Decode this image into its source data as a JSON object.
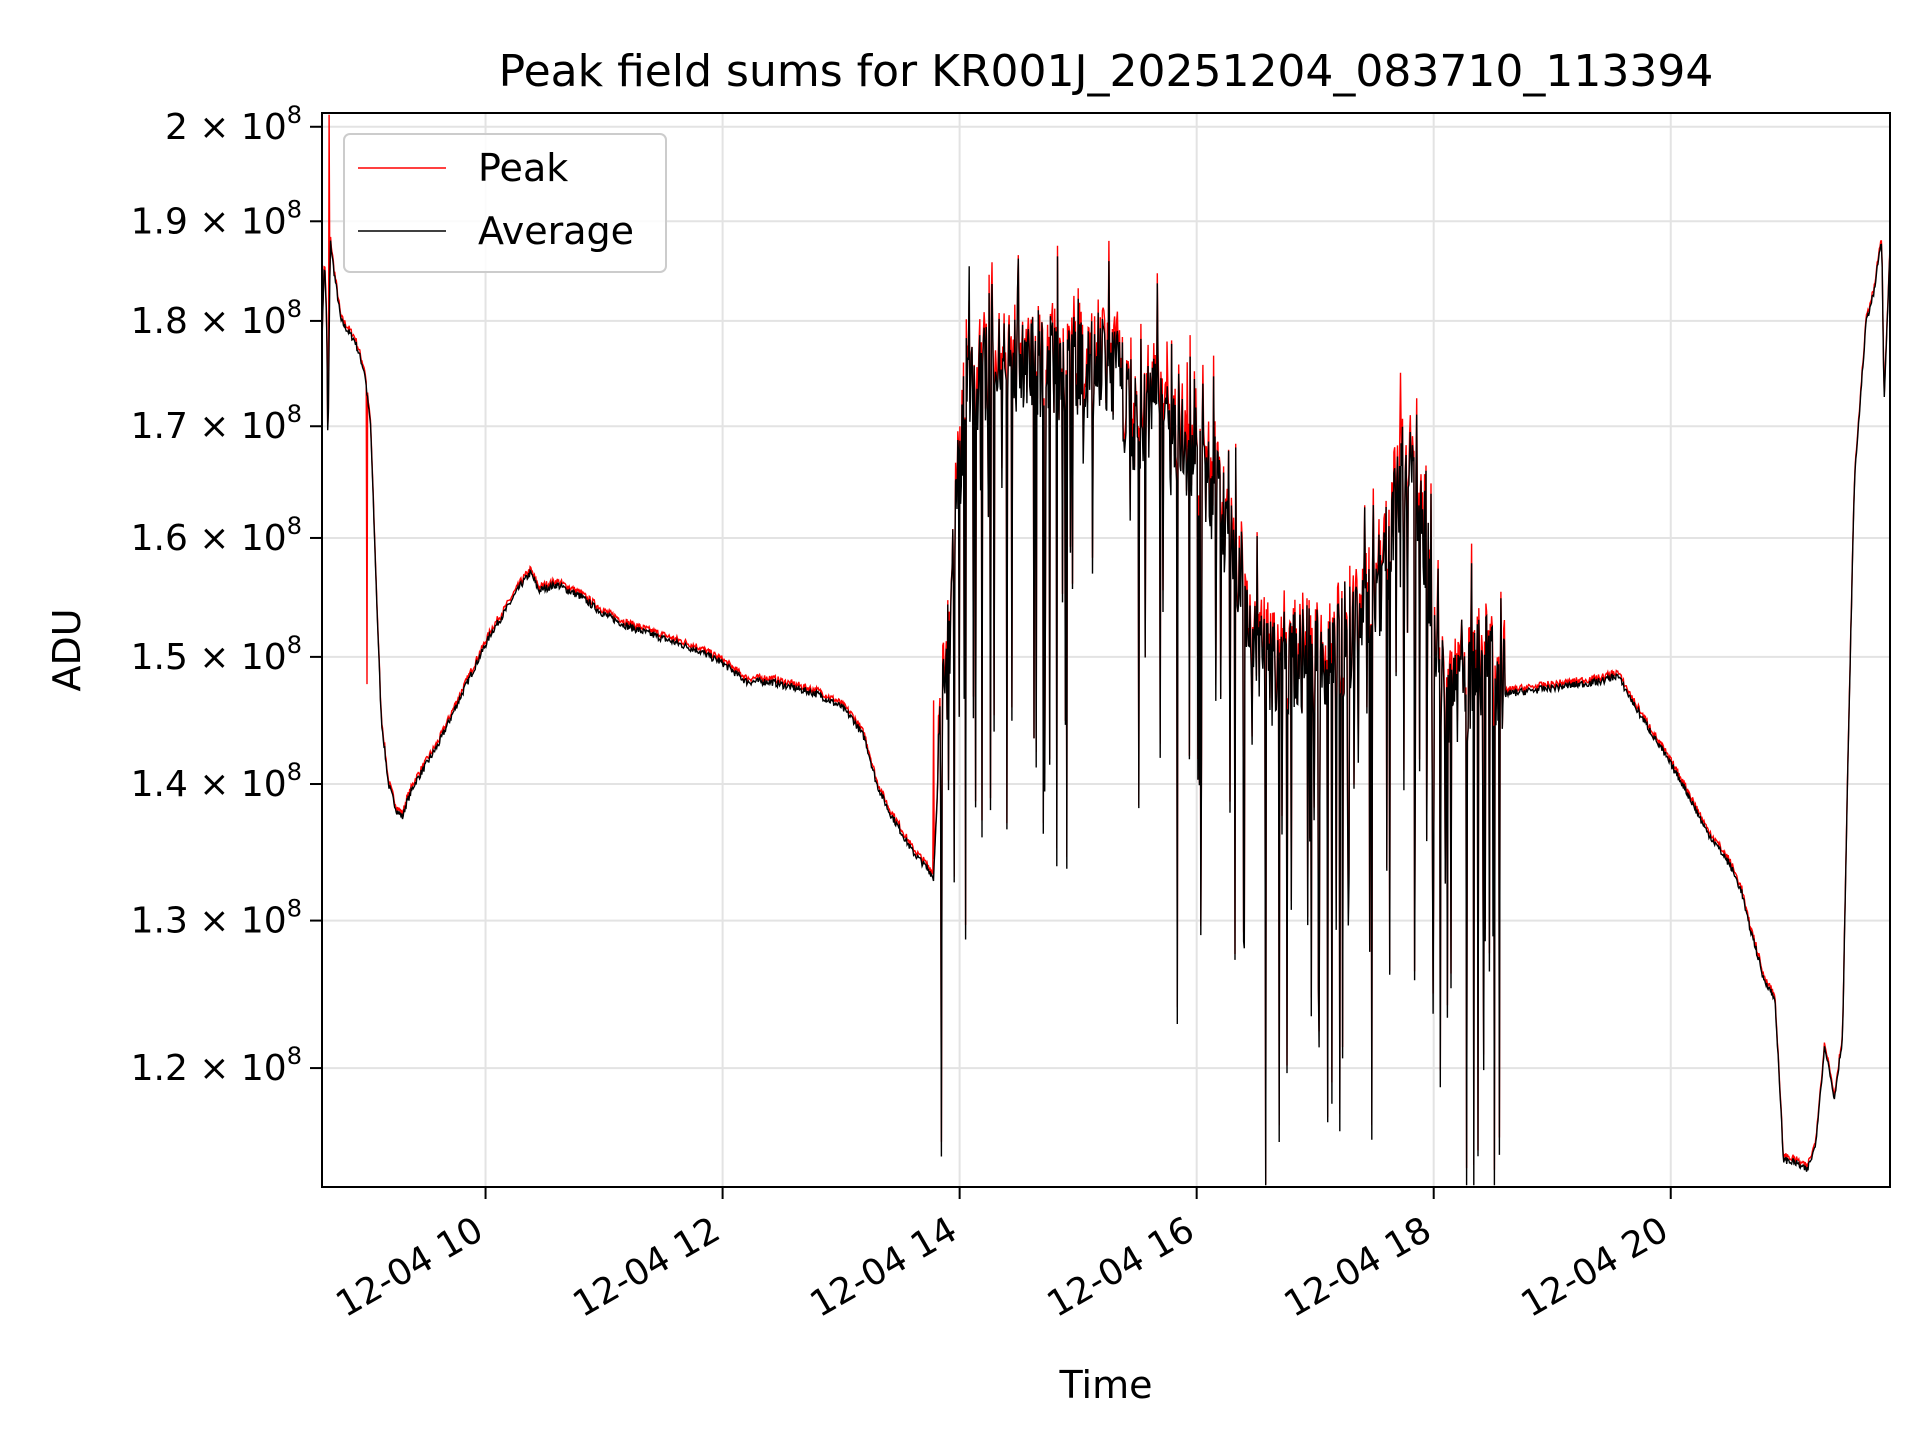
{
  "chart_data": {
    "type": "line",
    "title": "Peak field sums for KR001J_20251204_083710_113394",
    "xlabel": "Time",
    "ylabel": "ADU",
    "yscale": "log",
    "grid": true,
    "legend_position": "upper-left",
    "x_unit": "hours since 12-04 00:00",
    "xlim": [
      8.62,
      21.85
    ],
    "ylim": [
      112500000,
      201500000
    ],
    "x_ticks": [
      10,
      12,
      14,
      16,
      18,
      20
    ],
    "x_tick_labels": [
      "12-04 10",
      "12-04 12",
      "12-04 14",
      "12-04 16",
      "12-04 18",
      "12-04 20"
    ],
    "y_ticks": [
      120000000,
      130000000,
      140000000,
      150000000,
      160000000,
      170000000,
      180000000,
      190000000,
      200000000
    ],
    "y_tick_mantissas": [
      "1.2",
      "1.3",
      "1.4",
      "1.5",
      "1.6",
      "1.7",
      "1.8",
      "1.9",
      "2"
    ],
    "y_tick_times": "×",
    "y_tick_base": "10",
    "y_tick_exponent": "8",
    "series": [
      {
        "name": "Peak",
        "color": "#ff0000",
        "spikes": [
          [
            8.68,
            201500000
          ],
          [
            9.0,
            147800000
          ],
          [
            13.78,
            146500000
          ],
          [
            14.08,
            182000000
          ],
          [
            15.75,
            178000000
          ],
          [
            15.92,
            176000000
          ],
          [
            17.72,
            175000000
          ],
          [
            18.5,
            148500000
          ]
        ]
      },
      {
        "name": "Average",
        "color": "#000000",
        "x": [
          8.62,
          8.64,
          8.66,
          8.67,
          8.69,
          8.72,
          8.78,
          8.9,
          8.98,
          9.03,
          9.08,
          9.12,
          9.18,
          9.25,
          9.3,
          9.33,
          9.4,
          9.6,
          9.8,
          9.95,
          10.05,
          10.15,
          10.3,
          10.38,
          10.45,
          10.6,
          10.8,
          11.0,
          11.2,
          11.5,
          11.8,
          12.0,
          12.2,
          12.4,
          12.6,
          12.8,
          13.0,
          13.1,
          13.2,
          13.3,
          13.4,
          13.5,
          13.6,
          13.7,
          13.75,
          13.78,
          13.82,
          13.9,
          14.05,
          14.5,
          15.0,
          15.3,
          15.5,
          15.65,
          15.8,
          15.95,
          16.1,
          16.3,
          16.5,
          16.7,
          16.9,
          17.1,
          17.3,
          17.5,
          17.7,
          17.8,
          17.95,
          18.05,
          18.2,
          18.35,
          18.45,
          18.6,
          19.0,
          19.4,
          19.55,
          19.7,
          19.9,
          20.1,
          20.3,
          20.5,
          20.6,
          20.65,
          20.72,
          20.78,
          20.82,
          20.88,
          20.95,
          21.05,
          21.15,
          21.22,
          21.3,
          21.38,
          21.45,
          21.55,
          21.65,
          21.72,
          21.75,
          21.78,
          21.8,
          21.85
        ],
        "y": [
          178000000,
          186000000,
          180000000,
          167000000,
          188000000,
          185000000,
          180000000,
          178000000,
          175000000,
          170000000,
          155000000,
          145000000,
          140000000,
          138000000,
          137500000,
          138500000,
          140000000,
          143000000,
          147000000,
          150000000,
          152000000,
          153500000,
          156000000,
          157000000,
          155500000,
          156000000,
          155000000,
          153500000,
          152500000,
          151500000,
          150500000,
          149500000,
          148000000,
          148000000,
          147500000,
          147000000,
          146000000,
          145000000,
          143500000,
          140000000,
          138000000,
          136500000,
          135000000,
          134000000,
          133500000,
          133000000,
          141000000,
          150000000,
          174000000,
          176000000,
          175500000,
          175000000,
          170000000,
          173000000,
          168000000,
          168000000,
          165000000,
          160000000,
          150000000,
          148000000,
          150000000,
          149000000,
          152000000,
          154000000,
          163000000,
          166000000,
          158000000,
          148000000,
          147000000,
          148000000,
          150000000,
          147000000,
          147500000,
          148000000,
          148500000,
          146000000,
          143000000,
          140000000,
          136500000,
          134000000,
          132000000,
          130000000,
          128000000,
          126000000,
          125500000,
          124500000,
          114200000,
          114000000,
          113500000,
          115000000,
          121500000,
          118000000,
          122000000,
          165000000,
          180000000,
          183000000,
          186000000,
          188000000,
          172000000,
          187000000
        ]
      }
    ]
  }
}
